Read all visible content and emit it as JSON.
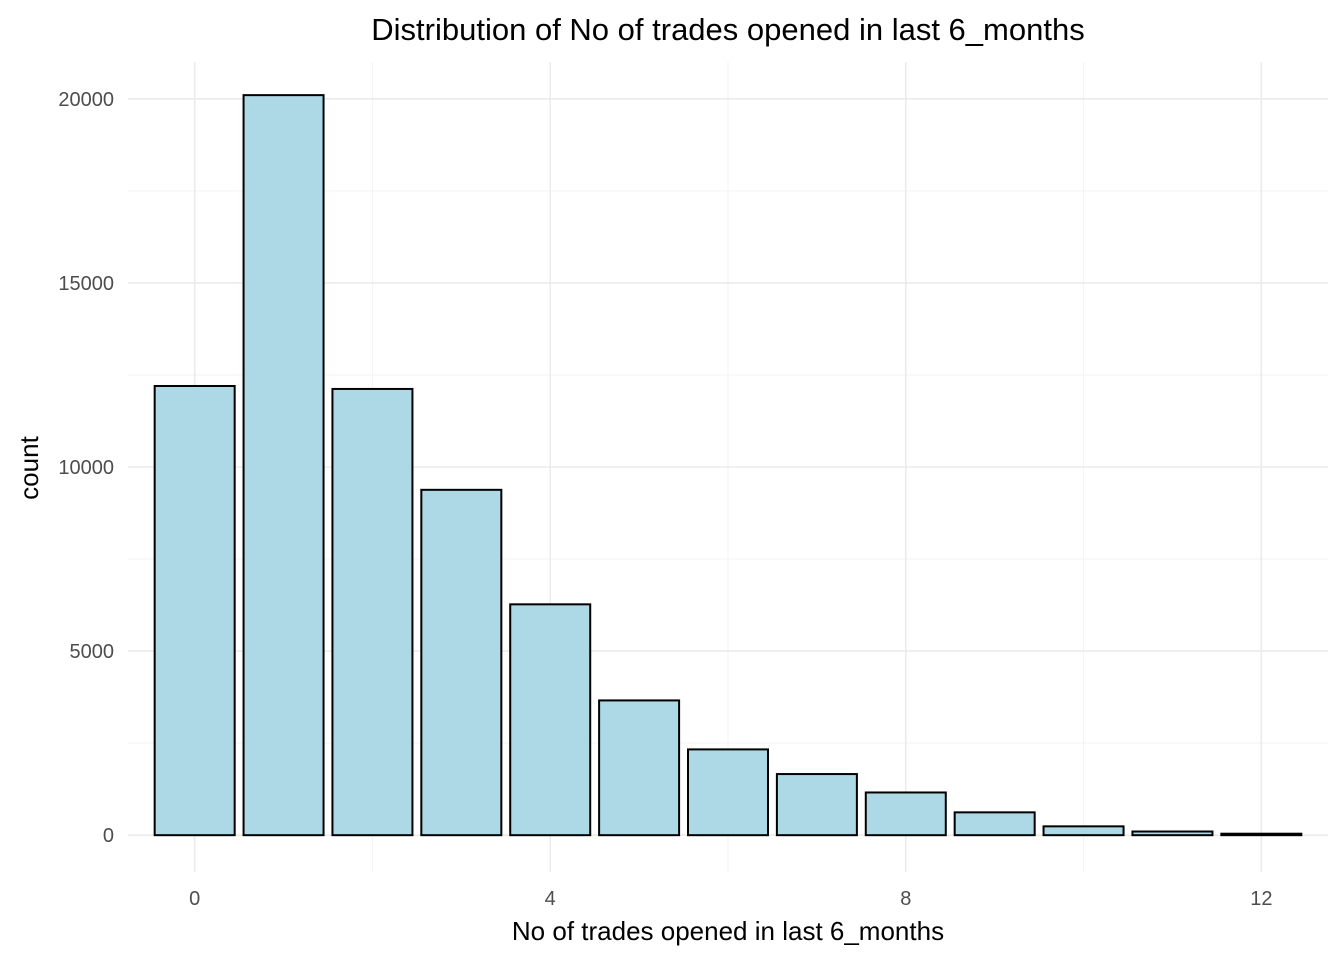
{
  "chart_data": {
    "type": "bar",
    "title": "Distribution of No of trades opened in last 6_months",
    "xlabel": "No of trades opened in last 6_months",
    "ylabel": "count",
    "x": [
      0,
      1,
      2,
      3,
      4,
      5,
      6,
      7,
      8,
      9,
      10,
      11,
      12
    ],
    "values": [
      12200,
      20100,
      12120,
      9380,
      6270,
      3660,
      2330,
      1660,
      1160,
      620,
      240,
      100,
      40
    ],
    "xlim": [
      -0.75,
      12.75
    ],
    "ylim": [
      -1000,
      21000
    ],
    "x_ticks": [
      0,
      4,
      8,
      12
    ],
    "x_tick_labels": [
      "0",
      "4",
      "8",
      "12"
    ],
    "x_minor_ticks": [
      2,
      6,
      10
    ],
    "y_ticks": [
      0,
      5000,
      10000,
      15000,
      20000
    ],
    "y_tick_labels": [
      "0",
      "5000",
      "10000",
      "15000",
      "20000"
    ],
    "y_minor_ticks": [
      2500,
      7500,
      12500,
      17500
    ],
    "grid": true,
    "legend": "none",
    "colors": {
      "bar_fill": "#add8e6",
      "bar_stroke": "#000000",
      "background": "#ffffff"
    }
  }
}
